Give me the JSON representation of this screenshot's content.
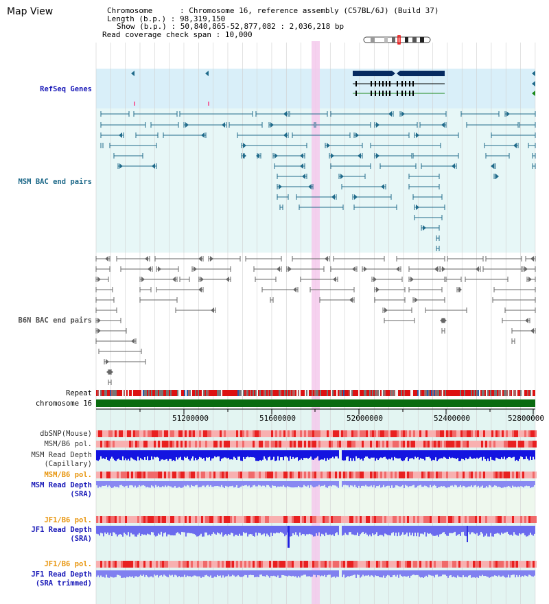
{
  "view": {
    "title": "Map View"
  },
  "info": {
    "chromosome_label": "Chromosome",
    "chromosome_value": "Chromosome 16, reference assembly (C57BL/6J) (Build 37)",
    "length_label": "Length (b.p.)",
    "length_value": "98,319,150",
    "show_label": "Show (b.p.)",
    "show_value": "50,840,865-52,877,082 : 2,036,218 bp",
    "coverage_label": "Read coverage check span",
    "coverage_value": "10,000"
  },
  "tracks": {
    "refseq": "RefSeq Genes",
    "msm_bac": "MSM BAC end pairs",
    "b6n_bac": "B6N BAC end pairs",
    "repeat": "Repeat",
    "chromosome": "chromosome 16",
    "dbsnp": "dbSNP(Mouse)",
    "msm_b6_pol_1": "MSM/B6 pol.",
    "msm_read_depth_cap_1": "MSM Read Depth",
    "msm_read_depth_cap_2": "(Capillary)",
    "msm_b6_pol_2": "MSM/B6 pol.",
    "msm_read_depth_sra_1": "MSM Read Depth",
    "msm_read_depth_sra_2": "(SRA)",
    "jf1_b6_pol_1": "JF1/B6 pol.",
    "jf1_read_depth_sra_1": "JF1 Read Depth",
    "jf1_read_depth_sra_2": "(SRA)",
    "jf1_b6_pol_2": "JF1/B6 pol.",
    "jf1_read_depth_trim_1": "JF1 Read Depth",
    "jf1_read_depth_trim_2": "(SRA trimmed)"
  },
  "axis": {
    "ticks": [
      "51200000",
      "51600000",
      "52000000",
      "52400000",
      "52800000"
    ]
  },
  "colors": {
    "refseq_bg": "#d9eff9",
    "msm_bg": "#e7f7f7",
    "b6n_bg": "#ffffff",
    "lower_bg": "#e3f5f2",
    "highlight": "#f4c9ec",
    "msm_line": "#1f6a8a",
    "b6n_line": "#666666",
    "chrom_green": "#0a6b10",
    "depth_blue": "#1010e0",
    "depth_light": "#7c7cf0",
    "pol_red": "#f07070"
  }
}
